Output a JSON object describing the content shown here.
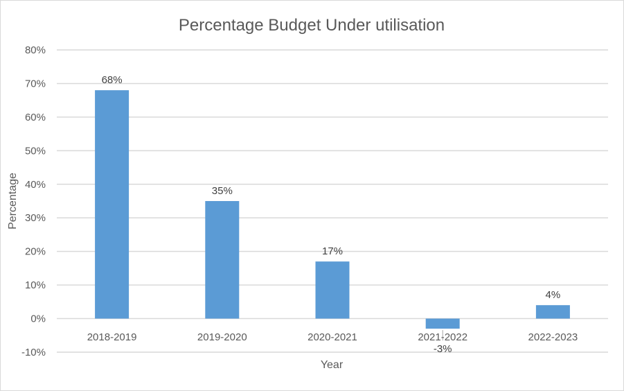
{
  "chart_data": {
    "type": "bar",
    "title": "Percentage Budget Under utilisation",
    "xlabel": "Year",
    "ylabel": "Percentage",
    "categories": [
      "2018-2019",
      "2019-2020",
      "2020-2021",
      "2021-2022",
      "2022-2023"
    ],
    "values": [
      68,
      35,
      17,
      -3,
      4
    ],
    "data_labels": [
      "68%",
      "35%",
      "17%",
      "-3%",
      "4%"
    ],
    "ylim": [
      -10,
      80
    ],
    "yticks": [
      -10,
      0,
      10,
      20,
      30,
      40,
      50,
      60,
      70,
      80
    ],
    "ytick_labels": [
      "-10%",
      "0%",
      "10%",
      "20%",
      "30%",
      "40%",
      "50%",
      "60%",
      "70%",
      "80%"
    ],
    "grid": true,
    "legend": "none",
    "bar_color": "#5b9bd5"
  }
}
